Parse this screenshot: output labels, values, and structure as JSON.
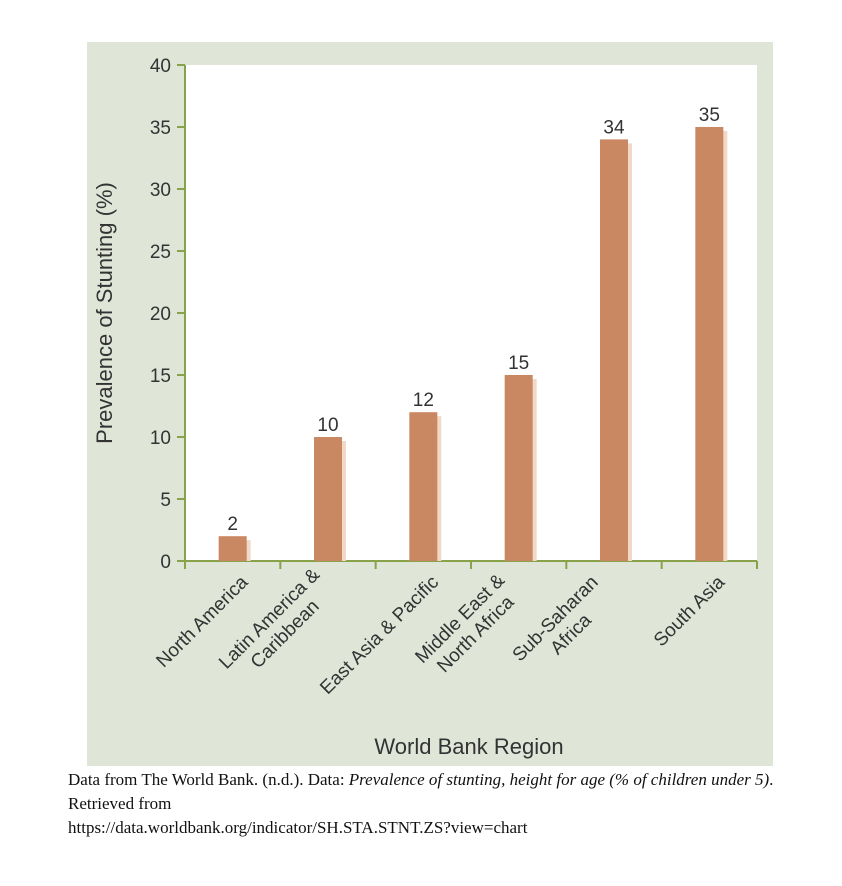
{
  "chart_data": {
    "type": "bar",
    "title": "",
    "xlabel": "World Bank Region",
    "ylabel": "Prevalence of Stunting (%)",
    "ylim": [
      0,
      40
    ],
    "yticks": [
      0,
      5,
      10,
      15,
      20,
      25,
      30,
      35,
      40
    ],
    "categories": [
      "North America",
      "Latin America & Caribbean",
      "East Asia & Pacific",
      "Middle East & North Africa",
      "Sub-Saharan Africa",
      "South Asia"
    ],
    "category_lines": [
      [
        "North America"
      ],
      [
        "Latin America &",
        "Caribbean"
      ],
      [
        "East Asia & Pacific"
      ],
      [
        "Middle East &",
        "North Africa"
      ],
      [
        "Sub-Saharan",
        "Africa"
      ],
      [
        "South Asia"
      ]
    ],
    "values": [
      2,
      10,
      12,
      15,
      34,
      35
    ],
    "colors": {
      "bar": "#c98762",
      "bar_shadow": "#f0d9c6",
      "panel": "#dfe6d8",
      "plot": "#ffffff",
      "axis": "#88a24a",
      "text": "#333333"
    }
  },
  "caption": {
    "prefix": "Data from The World Bank. (n.d.). Data: ",
    "title": "Prevalence of stunting, height for age (% of children under 5)",
    "suffix": ". Retrieved from",
    "url": "https://data.worldbank.org/indicator/SH.STA.STNT.ZS?view=chart"
  }
}
